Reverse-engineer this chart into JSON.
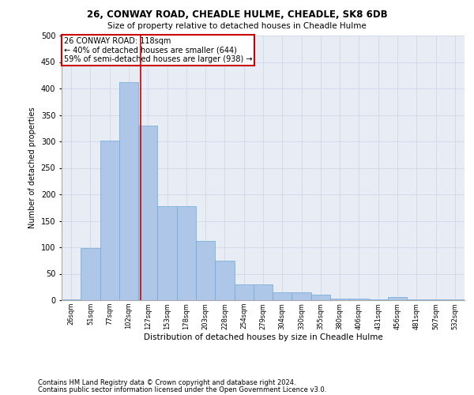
{
  "title1": "26, CONWAY ROAD, CHEADLE HULME, CHEADLE, SK8 6DB",
  "title2": "Size of property relative to detached houses in Cheadle Hulme",
  "xlabel": "Distribution of detached houses by size in Cheadle Hulme",
  "ylabel": "Number of detached properties",
  "bar_labels": [
    "26sqm",
    "51sqm",
    "77sqm",
    "102sqm",
    "127sqm",
    "153sqm",
    "178sqm",
    "203sqm",
    "228sqm",
    "254sqm",
    "279sqm",
    "304sqm",
    "330sqm",
    "355sqm",
    "380sqm",
    "406sqm",
    "431sqm",
    "456sqm",
    "481sqm",
    "507sqm",
    "532sqm"
  ],
  "bar_values": [
    2,
    98,
    301,
    412,
    330,
    178,
    178,
    112,
    75,
    30,
    30,
    15,
    15,
    10,
    3,
    3,
    2,
    6,
    2,
    1,
    1
  ],
  "bar_color": "#aec6e8",
  "bar_edge_color": "#6fa8d4",
  "grid_color": "#d0d8e8",
  "background_color": "#e8edf5",
  "property_label": "26 CONWAY ROAD: 118sqm",
  "annotation_line1": "← 40% of detached houses are smaller (644)",
  "annotation_line2": "59% of semi-detached houses are larger (938) →",
  "annotation_box_color": "#ffffff",
  "annotation_box_edge": "#cc0000",
  "vline_color": "#cc0000",
  "vline_x": 118,
  "bin_width": 25.4,
  "ylim": [
    0,
    500
  ],
  "yticks": [
    0,
    50,
    100,
    150,
    200,
    250,
    300,
    350,
    400,
    450,
    500
  ],
  "footer1": "Contains HM Land Registry data © Crown copyright and database right 2024.",
  "footer2": "Contains public sector information licensed under the Open Government Licence v3.0."
}
